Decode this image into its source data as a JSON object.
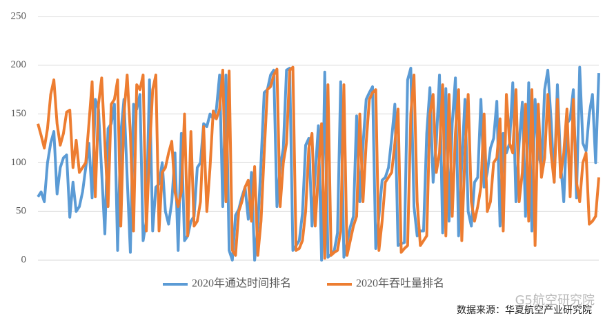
{
  "chart_data": {
    "type": "line",
    "ylim": [
      0,
      250
    ],
    "yticks": [
      0,
      50,
      100,
      150,
      200,
      250
    ],
    "grid": true,
    "legend": "bottom",
    "source": "数据来源：华夏航空产业研究院",
    "watermark": "G5航空研究院",
    "series": [
      {
        "name": "2020年通达时间排名",
        "color": "#5b9bd5",
        "values": [
          65,
          70,
          60,
          100,
          120,
          132,
          68,
          95,
          105,
          108,
          44,
          80,
          50,
          55,
          70,
          95,
          120,
          64,
          165,
          155,
          90,
          27,
          135,
          140,
          160,
          10,
          130,
          165,
          85,
          8,
          160,
          155,
          170,
          20,
          40,
          185,
          30,
          75,
          78,
          100,
          50,
          37,
          60,
          110,
          10,
          130,
          20,
          25,
          40,
          45,
          95,
          100,
          140,
          137,
          150,
          145,
          155,
          190,
          55,
          190,
          10,
          0,
          46,
          52,
          65,
          75,
          42,
          90,
          0,
          35,
          100,
          172,
          175,
          190,
          195,
          55,
          95,
          115,
          195,
          197,
          10,
          15,
          20,
          48,
          118,
          125,
          35,
          88,
          138,
          0,
          193,
          3,
          6,
          10,
          28,
          183,
          3,
          18,
          34,
          45,
          148,
          60,
          118,
          165,
          172,
          178,
          12,
          45,
          82,
          85,
          95,
          125,
          160,
          15,
          17,
          18,
          185,
          197,
          55,
          25,
          30,
          30,
          130,
          177,
          80,
          120,
          190,
          28,
          176,
          40,
          140,
          187,
          25,
          100,
          165,
          50,
          35,
          80,
          85,
          165,
          75,
          90,
          115,
          125,
          163,
          35,
          130,
          110,
          120,
          182,
          60,
          120,
          162,
          45,
          182,
          30,
          165,
          110,
          95,
          175,
          195,
          145,
          80,
          180,
          100,
          60,
          140,
          145,
          175,
          64,
          198,
          120,
          112,
          150,
          170,
          100,
          192
        ]
      },
      {
        "name": "2020年吞吐量排名",
        "color": "#ed7d31",
        "values": [
          140,
          128,
          115,
          135,
          170,
          185,
          140,
          118,
          130,
          152,
          154,
          95,
          123,
          90,
          95,
          100,
          140,
          183,
          65,
          160,
          187,
          120,
          55,
          160,
          165,
          185,
          35,
          150,
          190,
          130,
          30,
          180,
          175,
          190,
          30,
          110,
          175,
          190,
          30,
          90,
          95,
          110,
          122,
          70,
          55,
          70,
          150,
          25,
          132,
          35,
          40,
          60,
          137,
          50,
          95,
          153,
          145,
          155,
          195,
          60,
          194,
          10,
          5,
          50,
          60,
          75,
          82,
          40,
          96,
          5,
          40,
          110,
          175,
          178,
          190,
          196,
          55,
          100,
          120,
          195,
          198,
          10,
          12,
          20,
          50,
          115,
          130,
          35,
          90,
          140,
          2,
          180,
          5,
          8,
          10,
          30,
          180,
          5,
          20,
          35,
          45,
          150,
          60,
          120,
          165,
          172,
          175,
          10,
          40,
          80,
          85,
          90,
          120,
          155,
          8,
          12,
          15,
          150,
          190,
          60,
          15,
          20,
          25,
          150,
          170,
          90,
          110,
          180,
          25,
          170,
          45,
          130,
          175,
          20,
          110,
          170,
          60,
          40,
          55,
          75,
          150,
          50,
          60,
          100,
          105,
          145,
          30,
          170,
          120,
          110,
          175,
          60,
          90,
          160,
          40,
          175,
          15,
          160,
          85,
          105,
          170,
          110,
          80,
          165,
          85,
          110,
          155,
          65,
          165,
          80,
          60,
          100,
          110,
          37,
          40,
          45,
          85
        ]
      }
    ]
  }
}
